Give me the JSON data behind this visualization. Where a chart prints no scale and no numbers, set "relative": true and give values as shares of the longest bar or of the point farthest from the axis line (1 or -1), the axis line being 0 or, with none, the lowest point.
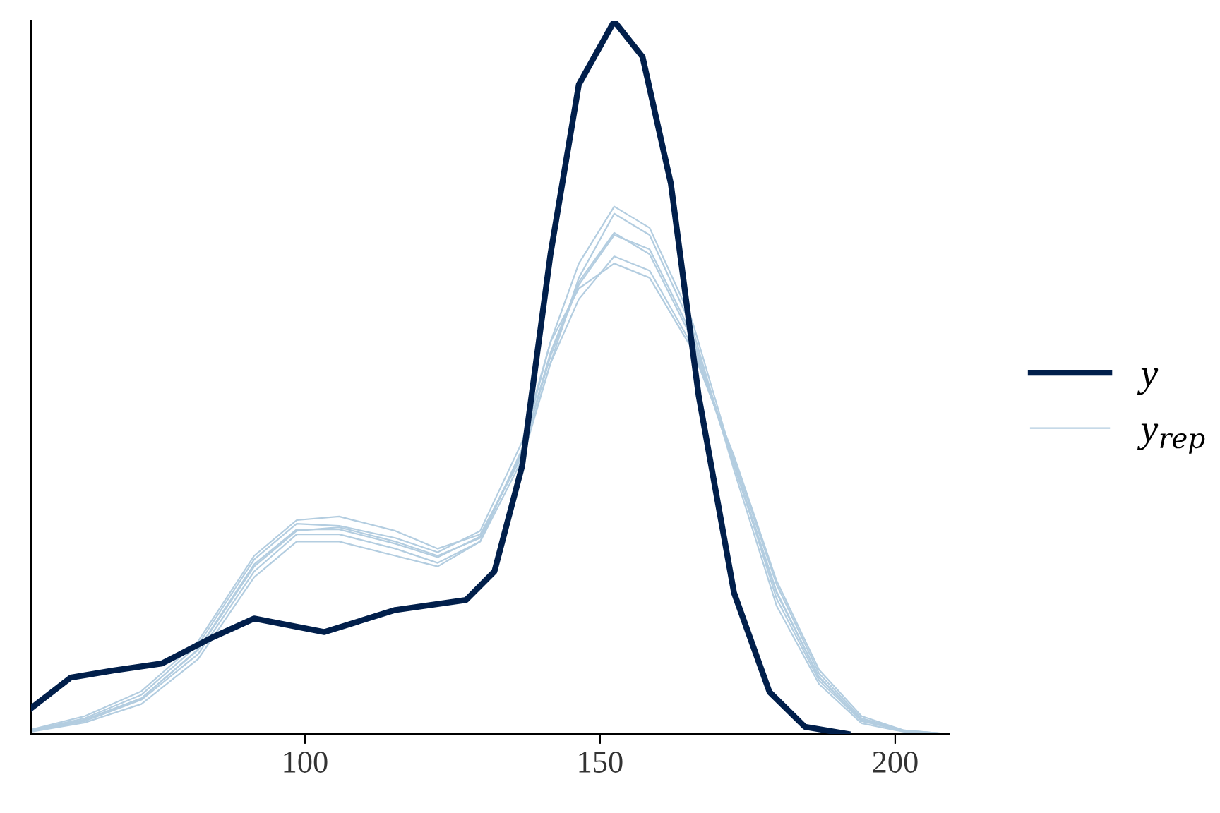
{
  "chart_data": {
    "type": "line",
    "relative": true,
    "x": [
      53.6,
      62.7,
      72.3,
      81.9,
      91.4,
      98.6,
      105.8,
      115.3,
      122.5,
      129.7,
      136.8,
      141.6,
      146.4,
      152.4,
      158.4,
      165.6,
      172.7,
      179.9,
      187.1,
      194.3,
      201.5,
      209.1
    ],
    "xlim": [
      53.6,
      209.1
    ],
    "xticks": [
      100,
      150,
      200
    ],
    "tick_labels": "x",
    "grid": false,
    "legend": "right",
    "line_style": "solid",
    "marker": "none",
    "series": [
      {
        "color": "#b3cde0",
        "values": [
          0.004,
          0.02,
          0.05,
          0.119,
          0.238,
          0.287,
          0.287,
          0.267,
          0.248,
          0.277,
          0.396,
          0.535,
          0.634,
          0.703,
          0.673,
          0.554,
          0.376,
          0.198,
          0.079,
          0.02,
          0.004,
          0
        ]
      },
      {
        "color": "#b3cde0",
        "values": [
          0.006,
          0.025,
          0.06,
          0.13,
          0.25,
          0.3,
          0.305,
          0.285,
          0.26,
          0.28,
          0.39,
          0.52,
          0.64,
          0.73,
          0.7,
          0.57,
          0.37,
          0.18,
          0.07,
          0.015,
          0.003,
          0
        ]
      },
      {
        "color": "#b3cde0",
        "values": [
          0.003,
          0.016,
          0.042,
          0.105,
          0.22,
          0.27,
          0.27,
          0.25,
          0.235,
          0.27,
          0.4,
          0.55,
          0.625,
          0.66,
          0.64,
          0.54,
          0.39,
          0.215,
          0.09,
          0.025,
          0.005,
          0
        ]
      },
      {
        "color": "#b3cde0",
        "values": [
          0.005,
          0.022,
          0.055,
          0.125,
          0.245,
          0.295,
          0.292,
          0.275,
          0.255,
          0.285,
          0.41,
          0.55,
          0.66,
          0.74,
          0.71,
          0.58,
          0.38,
          0.19,
          0.075,
          0.018,
          0.004,
          0
        ]
      },
      {
        "color": "#b3cde0",
        "values": [
          0.004,
          0.018,
          0.048,
          0.112,
          0.228,
          0.28,
          0.28,
          0.26,
          0.24,
          0.27,
          0.385,
          0.52,
          0.61,
          0.67,
          0.65,
          0.545,
          0.385,
          0.21,
          0.085,
          0.022,
          0.005,
          0
        ]
      },
      {
        "name": "y$_{rep}$",
        "color": "#b3cde0",
        "values": [
          0.004,
          0.02,
          0.05,
          0.118,
          0.235,
          0.285,
          0.29,
          0.27,
          0.25,
          0.275,
          0.395,
          0.53,
          0.63,
          0.7,
          0.68,
          0.56,
          0.38,
          0.2,
          0.08,
          0.02,
          0.004,
          0
        ]
      },
      {
        "name": "y",
        "color": "#011f4b",
        "x": [
          53.6,
          60.3,
          67.5,
          75.8,
          84.2,
          91.4,
          103.3,
          115.3,
          127.3,
          132.1,
          136.8,
          141.6,
          146.4,
          152.4,
          157.2,
          162.0,
          166.7,
          172.7,
          178.7,
          184.7,
          191.9
        ],
        "values": [
          0.036,
          0.079,
          0.089,
          0.099,
          0.135,
          0.162,
          0.143,
          0.174,
          0.188,
          0.228,
          0.376,
          0.673,
          0.911,
          1.0,
          0.95,
          0.772,
          0.475,
          0.198,
          0.059,
          0.01,
          0
        ]
      }
    ]
  }
}
